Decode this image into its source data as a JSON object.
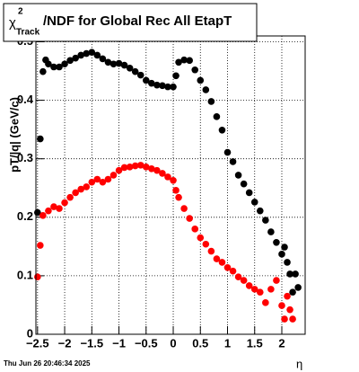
{
  "chart_data": {
    "type": "scatter",
    "title": {
      "symbol": "χ",
      "sup": "2",
      "sub": "Track",
      "text": "/NDF for Global Rec All EtapT"
    },
    "y_label": "pT/|q| (GeV/c)",
    "x_label": "η",
    "timestamp": "Thu Jun 26 20:46:34 2025",
    "xlim": [
      -2.53,
      2.43
    ],
    "ylim": [
      0,
      0.51
    ],
    "xticks": [
      {
        "value": -2.5,
        "label": "−2.5"
      },
      {
        "value": -2,
        "label": "−2"
      },
      {
        "value": -1.5,
        "label": "−1.5"
      },
      {
        "value": -1,
        "label": "−1"
      },
      {
        "value": -0.5,
        "label": "−0.5"
      },
      0,
      0.5,
      1,
      1.5,
      2
    ],
    "yticks": [
      0,
      0.1,
      0.2,
      0.3,
      0.4,
      0.5
    ],
    "grid": true,
    "series": [
      {
        "color": "#000000",
        "x": [
          -2.5,
          -2.45,
          -2.4,
          -2.35,
          -2.3,
          -2.2,
          -2.1,
          -2.0,
          -1.9,
          -1.8,
          -1.7,
          -1.6,
          -1.5,
          -1.4,
          -1.3,
          -1.2,
          -1.1,
          -1.0,
          -0.9,
          -0.8,
          -0.7,
          -0.6,
          -0.5,
          -0.4,
          -0.3,
          -0.2,
          -0.1,
          0.0,
          0.05,
          0.1,
          0.2,
          0.3,
          0.4,
          0.5,
          0.6,
          0.7,
          0.8,
          0.9,
          1.0,
          1.1,
          1.2,
          1.3,
          1.4,
          1.5,
          1.6,
          1.7,
          1.8,
          1.9,
          2.0,
          2.05,
          2.1,
          2.15,
          2.2,
          2.25,
          2.3
        ],
        "values": [
          0.208,
          0.334,
          0.449,
          0.469,
          0.462,
          0.457,
          0.457,
          0.462,
          0.468,
          0.472,
          0.477,
          0.48,
          0.482,
          0.477,
          0.471,
          0.465,
          0.462,
          0.463,
          0.46,
          0.455,
          0.449,
          0.443,
          0.434,
          0.429,
          0.426,
          0.425,
          0.423,
          0.423,
          0.442,
          0.465,
          0.469,
          0.468,
          0.452,
          0.434,
          0.418,
          0.398,
          0.372,
          0.349,
          0.311,
          0.295,
          0.272,
          0.257,
          0.242,
          0.226,
          0.211,
          0.195,
          0.175,
          0.157,
          0.137,
          0.149,
          0.123,
          0.103,
          0.072,
          0.103,
          0.08
        ]
      },
      {
        "color": "#ff0000",
        "x": [
          -2.5,
          -2.45,
          -2.4,
          -2.3,
          -2.2,
          -2.1,
          -2.0,
          -1.9,
          -1.8,
          -1.7,
          -1.6,
          -1.5,
          -1.4,
          -1.3,
          -1.2,
          -1.1,
          -1.0,
          -0.9,
          -0.8,
          -0.7,
          -0.6,
          -0.5,
          -0.4,
          -0.3,
          -0.2,
          -0.1,
          0.0,
          0.05,
          0.1,
          0.2,
          0.3,
          0.4,
          0.5,
          0.6,
          0.7,
          0.8,
          0.9,
          1.0,
          1.1,
          1.2,
          1.3,
          1.4,
          1.5,
          1.6,
          1.7,
          1.8,
          1.9,
          2.0,
          2.05,
          2.1,
          2.15,
          2.2
        ],
        "values": [
          0.098,
          0.152,
          0.203,
          0.211,
          0.218,
          0.215,
          0.225,
          0.234,
          0.242,
          0.248,
          0.252,
          0.26,
          0.265,
          0.26,
          0.265,
          0.272,
          0.28,
          0.285,
          0.286,
          0.288,
          0.289,
          0.286,
          0.283,
          0.28,
          0.275,
          0.269,
          0.263,
          0.246,
          0.234,
          0.215,
          0.198,
          0.18,
          0.165,
          0.154,
          0.142,
          0.129,
          0.123,
          0.114,
          0.108,
          0.098,
          0.092,
          0.083,
          0.077,
          0.072,
          0.054,
          0.077,
          0.092,
          0.049,
          0.026,
          0.065,
          0.042,
          0.026
        ]
      }
    ]
  }
}
